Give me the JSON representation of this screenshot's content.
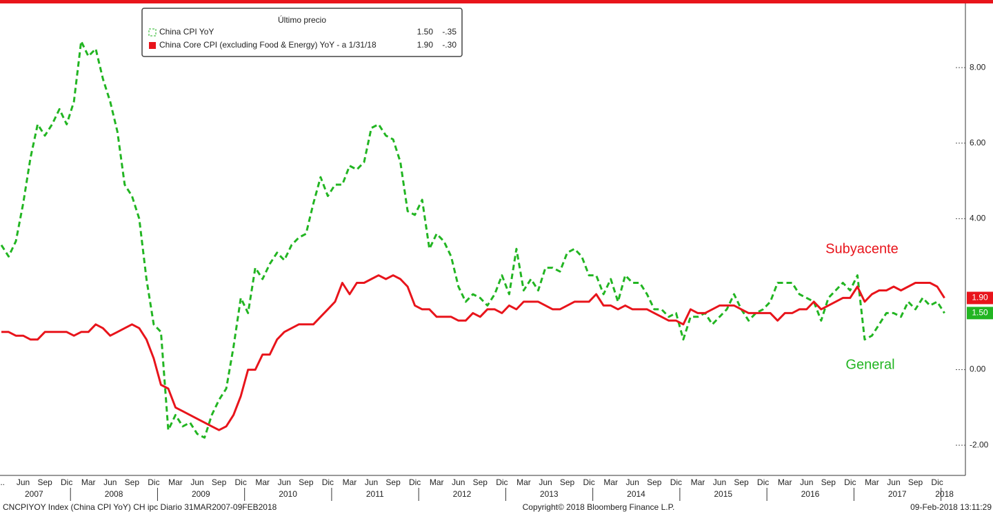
{
  "chart_data": {
    "type": "line",
    "legend_title": "Último precio",
    "categories": [
      "...",
      null,
      null,
      "Jun",
      null,
      null,
      "Sep",
      null,
      null,
      "Dic",
      null,
      null,
      "Mar",
      null,
      null,
      "Jun",
      null,
      null,
      "Sep",
      null,
      null,
      "Dic",
      null,
      null,
      "Mar",
      null,
      null,
      "Jun",
      null,
      null,
      "Sep",
      null,
      null,
      "Dic",
      null,
      null,
      "Mar",
      null,
      null,
      "Jun",
      null,
      null,
      "Sep",
      null,
      null,
      "Dic",
      null,
      null,
      "Mar",
      null,
      null,
      "Jun",
      null,
      null,
      "Sep",
      null,
      null,
      "Dic",
      null,
      null,
      "Mar",
      null,
      null,
      "Jun",
      null,
      null,
      "Sep",
      null,
      null,
      "Dic",
      null,
      null,
      "Mar",
      null,
      null,
      "Jun",
      null,
      null,
      "Sep",
      null,
      null,
      "Dic",
      null,
      null,
      "Mar",
      null,
      null,
      "Jun",
      null,
      null,
      "Sep",
      null,
      null,
      "Dic",
      null,
      null,
      "Mar",
      null,
      null,
      "Jun",
      null,
      null,
      "Sep",
      null,
      null,
      "Dic",
      null,
      null,
      "Mar",
      null,
      null,
      "Jun",
      null,
      null,
      "Sep",
      null,
      null,
      "Dic",
      null,
      null,
      "Mar",
      null,
      null,
      "Jun",
      null,
      null,
      "Sep",
      null,
      null,
      "Dic",
      null
    ],
    "years": [
      "2007",
      "2008",
      "2009",
      "2010",
      "2011",
      "2012",
      "2013",
      "2014",
      "2015",
      "2016",
      "2017",
      "2018"
    ],
    "series": [
      {
        "name": "China CPI YoY",
        "color": "#22b522",
        "dashed": true,
        "legend_last": "1.50",
        "legend_change": "-.35",
        "end_label": {
          "value": 1.5,
          "label": "1.50"
        },
        "values": [
          3.3,
          3.0,
          3.4,
          4.4,
          5.6,
          6.5,
          6.2,
          6.5,
          6.9,
          6.5,
          7.1,
          8.7,
          8.3,
          8.5,
          7.7,
          7.1,
          6.3,
          4.9,
          4.6,
          4.0,
          2.4,
          1.2,
          1.0,
          -1.6,
          -1.2,
          -1.5,
          -1.4,
          -1.7,
          -1.8,
          -1.2,
          -0.8,
          -0.5,
          0.6,
          1.9,
          1.5,
          2.7,
          2.4,
          2.8,
          3.1,
          2.9,
          3.3,
          3.5,
          3.6,
          4.4,
          5.1,
          4.6,
          4.9,
          4.9,
          5.4,
          5.3,
          5.5,
          6.4,
          6.5,
          6.2,
          6.1,
          5.5,
          4.2,
          4.1,
          4.5,
          3.2,
          3.6,
          3.4,
          3.0,
          2.2,
          1.8,
          2.0,
          1.9,
          1.7,
          2.0,
          2.5,
          2.0,
          3.2,
          2.1,
          2.4,
          2.1,
          2.7,
          2.7,
          2.6,
          3.1,
          3.2,
          3.0,
          2.5,
          2.5,
          2.0,
          2.4,
          1.8,
          2.5,
          2.3,
          2.3,
          2.0,
          1.6,
          1.6,
          1.4,
          1.5,
          0.8,
          1.4,
          1.4,
          1.5,
          1.2,
          1.4,
          1.6,
          2.0,
          1.6,
          1.3,
          1.5,
          1.6,
          1.8,
          2.3,
          2.3,
          2.3,
          2.0,
          1.9,
          1.8,
          1.3,
          1.9,
          2.1,
          2.3,
          2.1,
          2.5,
          0.8,
          0.9,
          1.2,
          1.5,
          1.5,
          1.4,
          1.8,
          1.6,
          1.9,
          1.7,
          1.8,
          1.5
        ]
      },
      {
        "name": "China Core CPI (excluding Food & Energy) YoY -  a 1/31/18",
        "color": "#e8141b",
        "dashed": false,
        "legend_last": "1.90",
        "legend_change": "-.30",
        "end_label": {
          "value": 1.9,
          "label": "1.90"
        },
        "values": [
          1.0,
          1.0,
          0.9,
          0.9,
          0.8,
          0.8,
          1.0,
          1.0,
          1.0,
          1.0,
          0.9,
          1.0,
          1.0,
          1.2,
          1.1,
          0.9,
          1.0,
          1.1,
          1.2,
          1.1,
          0.8,
          0.3,
          -0.4,
          -0.5,
          -1.0,
          -1.1,
          -1.2,
          -1.3,
          -1.4,
          -1.5,
          -1.6,
          -1.5,
          -1.2,
          -0.7,
          0.0,
          0.0,
          0.4,
          0.4,
          0.8,
          1.0,
          1.1,
          1.2,
          1.2,
          1.2,
          1.4,
          1.6,
          1.8,
          2.3,
          2.0,
          2.3,
          2.3,
          2.4,
          2.5,
          2.4,
          2.5,
          2.4,
          2.2,
          1.7,
          1.6,
          1.6,
          1.4,
          1.4,
          1.4,
          1.3,
          1.3,
          1.5,
          1.4,
          1.6,
          1.6,
          1.5,
          1.7,
          1.6,
          1.8,
          1.8,
          1.8,
          1.7,
          1.6,
          1.6,
          1.7,
          1.8,
          1.8,
          1.8,
          2.0,
          1.7,
          1.7,
          1.6,
          1.7,
          1.6,
          1.6,
          1.6,
          1.5,
          1.4,
          1.3,
          1.3,
          1.2,
          1.6,
          1.5,
          1.5,
          1.6,
          1.7,
          1.7,
          1.7,
          1.6,
          1.5,
          1.5,
          1.5,
          1.5,
          1.3,
          1.5,
          1.5,
          1.6,
          1.6,
          1.8,
          1.6,
          1.7,
          1.8,
          1.9,
          1.9,
          2.2,
          1.8,
          2.0,
          2.1,
          2.1,
          2.2,
          2.1,
          2.2,
          2.3,
          2.3,
          2.3,
          2.2,
          1.9
        ]
      }
    ],
    "annotations": [
      {
        "text": "Subyacente",
        "color": "#e8141b"
      },
      {
        "text": "General",
        "color": "#22b522"
      }
    ],
    "ylim": [
      -2.8,
      9.7
    ],
    "yticks": [
      {
        "value": -2,
        "label": "-2.00"
      },
      {
        "value": 0,
        "label": "0.00"
      },
      {
        "value": 4,
        "label": "4.00"
      },
      {
        "value": 6,
        "label": "6.00"
      },
      {
        "value": 8,
        "label": "8.00"
      }
    ],
    "footer_left": "CNCPIYOY Index (China CPI YoY) CH ipc  Diario 31MAR2007-09FEB2018",
    "footer_center": "Copyright© 2018 Bloomberg Finance L.P.",
    "footer_right": "09-Feb-2018 13:11:29"
  }
}
